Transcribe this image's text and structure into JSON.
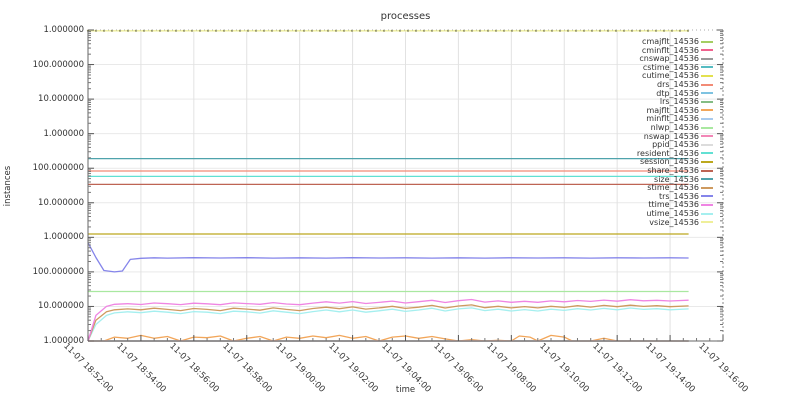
{
  "chart_data": {
    "type": "line",
    "title": "processes",
    "xlabel": "time",
    "ylabel": "instances",
    "y_scale": "log",
    "ylim": [
      1,
      1000000000
    ],
    "grid": true,
    "legend_position": "top-right-inside",
    "y_tick_labels": [
      "1.000000",
      "100.000000",
      "10.000000",
      "1.000000",
      "100.000000",
      "10.000000",
      "1.000000",
      "100.000000",
      "10.000000",
      "1.000000"
    ],
    "x_tick_labels": [
      "11-07 18:52:00",
      "11-07 18:54:00",
      "11-07 18:56:00",
      "11-07 18:58:00",
      "11-07 19:00:00",
      "11-07 19:02:00",
      "11-07 19:04:00",
      "11-07 19:06:00",
      "11-07 19:08:00",
      "11-07 19:10:00",
      "11-07 19:12:00",
      "11-07 19:14:00",
      "11-07 19:16:00"
    ],
    "x_domain_minutes": [
      0,
      24
    ],
    "data_end_minutes": 22.7,
    "series": [
      {
        "name": "cmajflt_14536",
        "color": "#A5CE63",
        "value": 1
      },
      {
        "name": "cminflt_14536",
        "color": "#F0628E",
        "value": 1
      },
      {
        "name": "cnswap_14536",
        "color": "#9A9A9A",
        "value": 1
      },
      {
        "name": "cstime_14536",
        "color": "#56BCC2",
        "value": 1
      },
      {
        "name": "cutime_14536",
        "color": "#E3E14F",
        "value": 1
      },
      {
        "name": "drs_14536",
        "color": "#F28B76",
        "value": 83000
      },
      {
        "name": "dtp_14536",
        "color": "#7EC3E1",
        "value": 1
      },
      {
        "name": "lrs_14536",
        "color": "#84BD84",
        "value": 1
      },
      {
        "name": "majflt_14536",
        "color": "#F2A65A",
        "points": [
          [
            0,
            1
          ],
          [
            0.6,
            1
          ],
          [
            1,
            1.3
          ],
          [
            1.5,
            1.2
          ],
          [
            2,
            1.45
          ],
          [
            2.5,
            1.2
          ],
          [
            3,
            1.35
          ],
          [
            3.5,
            1
          ],
          [
            4,
            1.3
          ],
          [
            4.5,
            1.25
          ],
          [
            5,
            1.4
          ],
          [
            5.5,
            1
          ],
          [
            6,
            1.2
          ],
          [
            6.5,
            1.35
          ],
          [
            7,
            1
          ],
          [
            7.5,
            1.3
          ],
          [
            8,
            1.2
          ],
          [
            8.5,
            1.4
          ],
          [
            9,
            1.25
          ],
          [
            9.5,
            1.45
          ],
          [
            10,
            1.2
          ],
          [
            10.5,
            1.35
          ],
          [
            11,
            1
          ],
          [
            11.5,
            1.3
          ],
          [
            12,
            1.4
          ],
          [
            12.5,
            1.2
          ],
          [
            13,
            1.35
          ],
          [
            13.5,
            1.15
          ],
          [
            14,
            1
          ],
          [
            14.5,
            1.1
          ],
          [
            15,
            1
          ],
          [
            15.5,
            1.05
          ],
          [
            16,
            1
          ],
          [
            16.3,
            1.4
          ],
          [
            16.7,
            1.3
          ],
          [
            17,
            1
          ],
          [
            17.5,
            1.45
          ],
          [
            18,
            1.3
          ],
          [
            18.3,
            1
          ],
          [
            19,
            1
          ],
          [
            19.5,
            1.2
          ],
          [
            20,
            1
          ],
          [
            21,
            1
          ],
          [
            22,
            1
          ],
          [
            22.7,
            1
          ]
        ]
      },
      {
        "name": "minflt_14536",
        "color": "#A9CBEE",
        "value": 1
      },
      {
        "name": "nlwp_14536",
        "color": "#A9E8A0",
        "value": 27
      },
      {
        "name": "nswap_14536",
        "color": "#F287B7",
        "value": 1
      },
      {
        "name": "ppid_14536",
        "color": "#DCDCDC",
        "value": 1
      },
      {
        "name": "resident_14536",
        "color": "#62E0D3",
        "value": 58000
      },
      {
        "name": "session_14536",
        "color": "#BCA81E",
        "value": 1250
      },
      {
        "name": "share_14536",
        "color": "#BE6454",
        "value": 34000
      },
      {
        "name": "size_14536",
        "color": "#4FA3AC",
        "value": 190000
      },
      {
        "name": "stime_14536",
        "color": "#CE9A5F",
        "points": [
          [
            0,
            1
          ],
          [
            0.3,
            4
          ],
          [
            0.7,
            7
          ],
          [
            1,
            8
          ],
          [
            1.5,
            8.5
          ],
          [
            2,
            8
          ],
          [
            2.5,
            8.9
          ],
          [
            3,
            8.2
          ],
          [
            3.5,
            7.6
          ],
          [
            4,
            8.7
          ],
          [
            4.5,
            8.2
          ],
          [
            5,
            7.6
          ],
          [
            5.5,
            8.9
          ],
          [
            6,
            8.4
          ],
          [
            6.5,
            7.8
          ],
          [
            7,
            9.1
          ],
          [
            7.5,
            8.2
          ],
          [
            8,
            7.6
          ],
          [
            8.5,
            8.7
          ],
          [
            9,
            9.5
          ],
          [
            9.5,
            8.6
          ],
          [
            10,
            9.7
          ],
          [
            10.5,
            8.4
          ],
          [
            11,
            9.1
          ],
          [
            11.5,
            10.1
          ],
          [
            12,
            8.8
          ],
          [
            12.5,
            9.5
          ],
          [
            13,
            10.7
          ],
          [
            13.5,
            9
          ],
          [
            14,
            10.3
          ],
          [
            14.5,
            11.1
          ],
          [
            15,
            9.2
          ],
          [
            15.5,
            10.1
          ],
          [
            16,
            9.1
          ],
          [
            16.5,
            9.9
          ],
          [
            17,
            9.1
          ],
          [
            17.5,
            10.1
          ],
          [
            18,
            9.4
          ],
          [
            18.5,
            10.5
          ],
          [
            19,
            9.6
          ],
          [
            19.5,
            10.7
          ],
          [
            20,
            9.8
          ],
          [
            20.5,
            10.9
          ],
          [
            21,
            10
          ],
          [
            21.5,
            10.5
          ],
          [
            22,
            9.8
          ],
          [
            22.7,
            10.4
          ]
        ]
      },
      {
        "name": "trs_14536",
        "color": "#8585EA",
        "points": [
          [
            0,
            700
          ],
          [
            0.3,
            260
          ],
          [
            0.6,
            110
          ],
          [
            1,
            100
          ],
          [
            1.3,
            106
          ],
          [
            1.6,
            230
          ],
          [
            2,
            248
          ],
          [
            2.5,
            256
          ],
          [
            3,
            250
          ],
          [
            4,
            258
          ],
          [
            5,
            252
          ],
          [
            6,
            257
          ],
          [
            7,
            251
          ],
          [
            8,
            256
          ],
          [
            9,
            250
          ],
          [
            10,
            257
          ],
          [
            11,
            252
          ],
          [
            12,
            256
          ],
          [
            13,
            250
          ],
          [
            14,
            255
          ],
          [
            15,
            251
          ],
          [
            16,
            256
          ],
          [
            17,
            252
          ],
          [
            18,
            255
          ],
          [
            19,
            251
          ],
          [
            20,
            256
          ],
          [
            21,
            252
          ],
          [
            22,
            255
          ],
          [
            22.7,
            253
          ]
        ]
      },
      {
        "name": "ttime_14536",
        "color": "#EF85E3",
        "points": [
          [
            0,
            1
          ],
          [
            0.3,
            5.5
          ],
          [
            0.7,
            10
          ],
          [
            1,
            11.5
          ],
          [
            1.5,
            12
          ],
          [
            2,
            11.4
          ],
          [
            2.5,
            12.6
          ],
          [
            3,
            12
          ],
          [
            3.5,
            11.3
          ],
          [
            4,
            12.4
          ],
          [
            4.5,
            11.9
          ],
          [
            5,
            11.2
          ],
          [
            5.5,
            12.7
          ],
          [
            6,
            12.1
          ],
          [
            6.5,
            11.5
          ],
          [
            7,
            12.9
          ],
          [
            7.5,
            11.8
          ],
          [
            8,
            11.2
          ],
          [
            8.5,
            12.5
          ],
          [
            9,
            13.6
          ],
          [
            9.5,
            12.5
          ],
          [
            10,
            13.8
          ],
          [
            10.5,
            12.2
          ],
          [
            11,
            13.1
          ],
          [
            11.5,
            14.3
          ],
          [
            12,
            12.6
          ],
          [
            12.5,
            13.7
          ],
          [
            13,
            15.1
          ],
          [
            13.5,
            13
          ],
          [
            14,
            14.7
          ],
          [
            14.5,
            15.9
          ],
          [
            15,
            13.4
          ],
          [
            15.5,
            14.5
          ],
          [
            16,
            13.2
          ],
          [
            16.5,
            14.1
          ],
          [
            17,
            13.2
          ],
          [
            17.5,
            14.5
          ],
          [
            18,
            13.6
          ],
          [
            18.5,
            14.9
          ],
          [
            19,
            14
          ],
          [
            19.5,
            15.3
          ],
          [
            20,
            14.2
          ],
          [
            20.5,
            15.7
          ],
          [
            21,
            14.6
          ],
          [
            21.5,
            15.1
          ],
          [
            22,
            14.4
          ],
          [
            22.7,
            15.2
          ]
        ]
      },
      {
        "name": "utime_14536",
        "color": "#A5EFEF",
        "z": -1,
        "points": [
          [
            0,
            1
          ],
          [
            0.3,
            3
          ],
          [
            0.7,
            5.5
          ],
          [
            1,
            6.5
          ],
          [
            1.5,
            7
          ],
          [
            2,
            6.6
          ],
          [
            2.5,
            7.3
          ],
          [
            3,
            6.8
          ],
          [
            3.5,
            6.2
          ],
          [
            4,
            7.1
          ],
          [
            4.5,
            6.8
          ],
          [
            5,
            6.2
          ],
          [
            5.5,
            7.3
          ],
          [
            6,
            7
          ],
          [
            6.5,
            6.4
          ],
          [
            7,
            7.5
          ],
          [
            7.5,
            6.8
          ],
          [
            8,
            6.2
          ],
          [
            8.5,
            7.1
          ],
          [
            9,
            7.9
          ],
          [
            9.5,
            7
          ],
          [
            10,
            7.9
          ],
          [
            10.5,
            6.8
          ],
          [
            11,
            7.5
          ],
          [
            11.5,
            8.3
          ],
          [
            12,
            7.2
          ],
          [
            12.5,
            7.9
          ],
          [
            13,
            8.9
          ],
          [
            13.5,
            7.4
          ],
          [
            14,
            8.5
          ],
          [
            14.5,
            9.1
          ],
          [
            15,
            7.6
          ],
          [
            15.5,
            8.3
          ],
          [
            16,
            7.4
          ],
          [
            16.5,
            8.1
          ],
          [
            17,
            7.4
          ],
          [
            17.5,
            8.3
          ],
          [
            18,
            7.7
          ],
          [
            18.5,
            8.6
          ],
          [
            19,
            7.9
          ],
          [
            19.5,
            8.8
          ],
          [
            20,
            8
          ],
          [
            20.5,
            9
          ],
          [
            21,
            8.2
          ],
          [
            21.5,
            8.6
          ],
          [
            22,
            8
          ],
          [
            22.7,
            8.5
          ]
        ]
      },
      {
        "name": "vsize_14536",
        "color": "#EFEF9A",
        "value": 950000000,
        "markers": true
      }
    ]
  }
}
